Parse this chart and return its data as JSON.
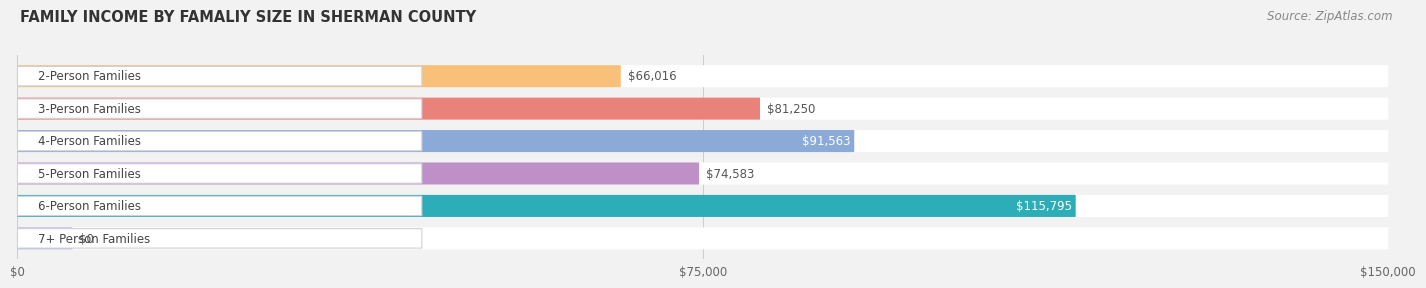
{
  "title": "FAMILY INCOME BY FAMALIY SIZE IN SHERMAN COUNTY",
  "source": "Source: ZipAtlas.com",
  "categories": [
    "2-Person Families",
    "3-Person Families",
    "4-Person Families",
    "5-Person Families",
    "6-Person Families",
    "7+ Person Families"
  ],
  "values": [
    66016,
    81250,
    91563,
    74583,
    115795,
    0
  ],
  "bar_colors": [
    "#F9C07A",
    "#E8827A",
    "#8CAAD8",
    "#BF90C8",
    "#2DADB8",
    "#B0B8E0"
  ],
  "value_labels": [
    "$66,016",
    "$81,250",
    "$91,563",
    "$74,583",
    "$115,795",
    "$0"
  ],
  "value_inside": [
    false,
    false,
    true,
    false,
    true,
    false
  ],
  "xlim": [
    0,
    150000
  ],
  "xticklabels": [
    "$0",
    "$75,000",
    "$150,000"
  ],
  "xtick_vals": [
    0,
    75000,
    150000
  ],
  "title_fontsize": 10.5,
  "source_fontsize": 8.5,
  "label_fontsize": 8.5,
  "value_fontsize": 8.5,
  "background_color": "#f2f2f2",
  "bar_bg_color": "#e8e8eb"
}
